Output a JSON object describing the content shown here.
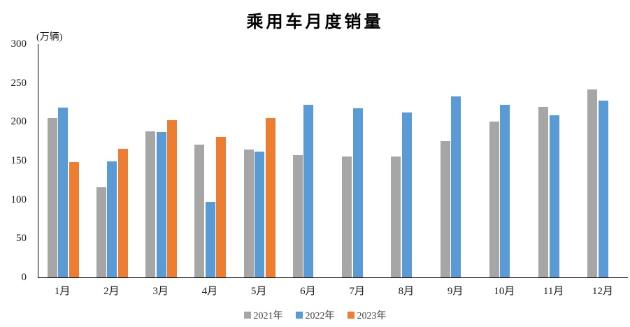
{
  "chart_data": {
    "type": "bar",
    "title": "乘用车月度销量",
    "unit_label": "(万辆)",
    "categories": [
      "1月",
      "2月",
      "3月",
      "4月",
      "5月",
      "6月",
      "7月",
      "8月",
      "9月",
      "10月",
      "11月",
      "12月"
    ],
    "series": [
      {
        "name": "2021年",
        "color": "#A6A6A6",
        "values": [
          205,
          116,
          188,
          171,
          164,
          157,
          155,
          155,
          175,
          200,
          219,
          242
        ]
      },
      {
        "name": "2022年",
        "color": "#5B9BD5",
        "values": [
          218,
          149,
          187,
          97,
          162,
          222,
          217,
          212,
          233,
          222,
          208,
          227
        ]
      },
      {
        "name": "2023年",
        "color": "#ED7D31",
        "values": [
          148,
          165,
          202,
          181,
          205,
          null,
          null,
          null,
          null,
          null,
          null,
          null
        ]
      }
    ],
    "ylabel": "",
    "xlabel": "",
    "ylim": [
      0,
      300
    ],
    "yticks": [
      0,
      50,
      100,
      150,
      200,
      250,
      300
    ],
    "grid": false,
    "legend_position": "bottom",
    "axis_color": "#000000",
    "background_color": "#ffffff"
  }
}
